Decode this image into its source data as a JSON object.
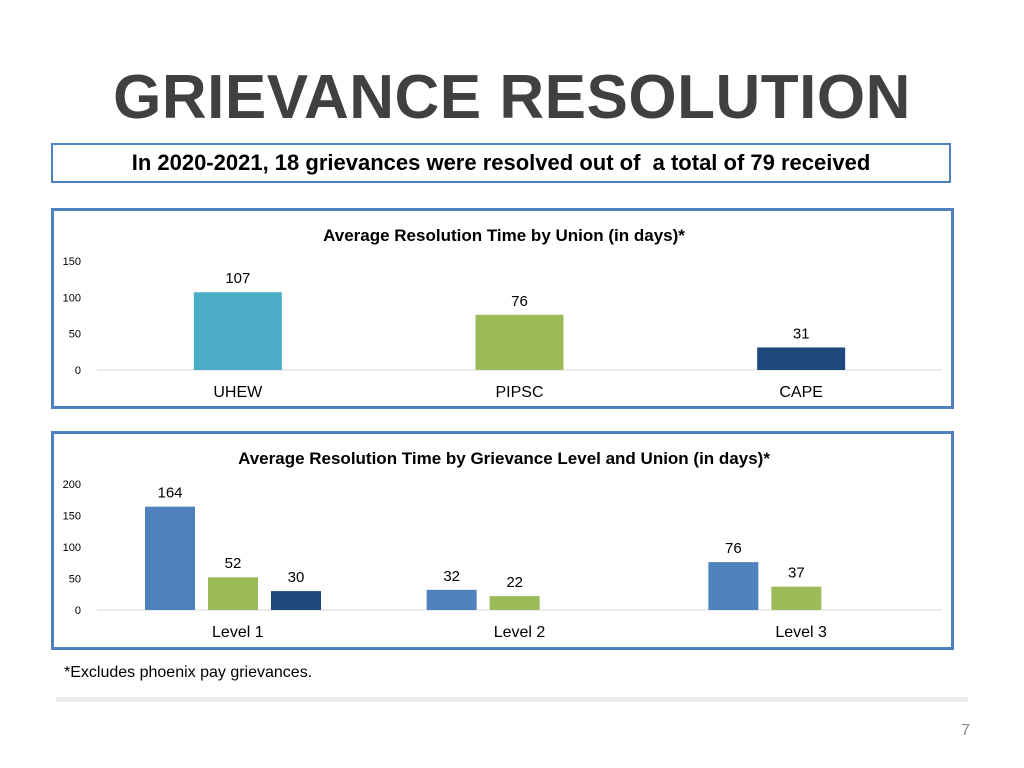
{
  "slide": {
    "title": "GRIEVANCE RESOLUTION",
    "summary": "In 2020-2021, 18 grievances were resolved out of  a total of 79 received",
    "footnote": "*Excludes phoenix pay grievances.",
    "page_number": "7"
  },
  "colors": {
    "accent": "#4f81bd",
    "uhew": "#4bacc6",
    "pipsc": "#9bbb59",
    "cape": "#1f497d",
    "level_blue": "#4f81bd"
  },
  "chart_data": [
    {
      "type": "bar",
      "title": "Average Resolution Time by Union (in days)*",
      "categories": [
        "UHEW",
        "PIPSC",
        "CAPE"
      ],
      "values": [
        107,
        76,
        31
      ],
      "bar_colors": [
        "#4bacc6",
        "#9bbb59",
        "#1f497d"
      ],
      "ylim": [
        0,
        150
      ],
      "yticks": [
        0,
        50,
        100,
        150
      ],
      "xlabel": "",
      "ylabel": "",
      "legend": "none",
      "grid": false
    },
    {
      "type": "bar",
      "title": "Average Resolution Time by Grievance Level and Union (in days)*",
      "categories": [
        "Level 1",
        "Level 2",
        "Level 3"
      ],
      "groups": [
        {
          "category": "Level 1",
          "values": [
            164,
            52,
            30
          ],
          "colors": [
            "#4f81bd",
            "#9bbb59",
            "#1f497d"
          ]
        },
        {
          "category": "Level 2",
          "values": [
            32,
            22
          ],
          "colors": [
            "#4f81bd",
            "#9bbb59"
          ]
        },
        {
          "category": "Level 3",
          "values": [
            76,
            37
          ],
          "colors": [
            "#4f81bd",
            "#9bbb59"
          ]
        }
      ],
      "ylim": [
        0,
        200
      ],
      "yticks": [
        0,
        50,
        100,
        150,
        200
      ],
      "xlabel": "",
      "ylabel": "",
      "legend": "none",
      "grid": false
    }
  ]
}
